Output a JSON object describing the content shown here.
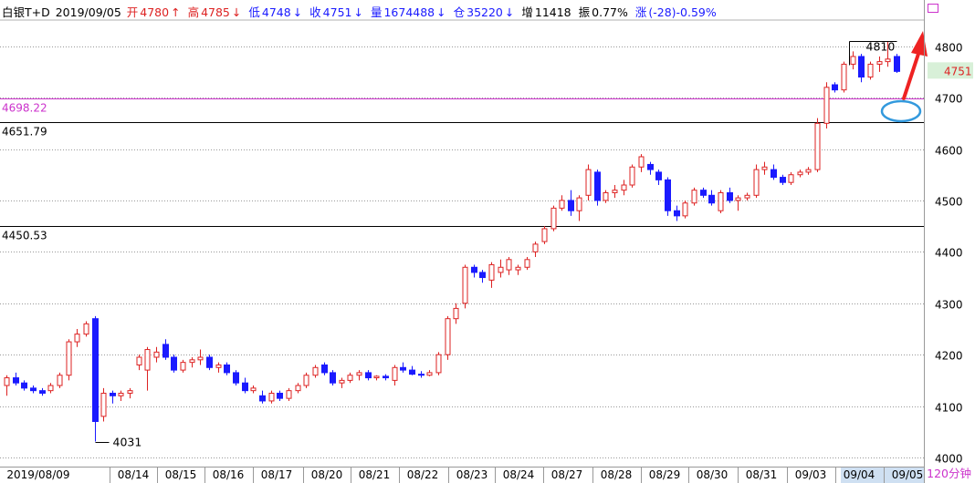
{
  "header": {
    "symbol": "白银T+D",
    "date": "2019/09/05",
    "open_label": "开",
    "open": "4780",
    "high_label": "高",
    "high": "4785",
    "low_label": "低",
    "low": "4748",
    "close_label": "收",
    "close": "4751",
    "volume_label": "量",
    "volume": "1674488",
    "oi_label": "仓",
    "oi": "35220",
    "oi_change_label": "增",
    "oi_change": "11418",
    "amplitude_label": "振",
    "amplitude": "0.77%",
    "change_label": "涨",
    "change": "(-28)-0.59%",
    "arrow_up": "↑",
    "arrow_down": "↓"
  },
  "period": "120分钟",
  "colors": {
    "up": "#dd2222",
    "down": "#1a1aff",
    "grid": "#999999",
    "hline_black": "#000000",
    "hline_magenta": "#cc33cc",
    "annotation_red": "#ee2222",
    "annotation_blue": "#3399dd",
    "current_price_bg": "#d8f0d8"
  },
  "chart_data": {
    "type": "candlestick",
    "ylim": [
      4000,
      4830
    ],
    "y_ticks": [
      4000,
      4100,
      4200,
      4300,
      4400,
      4500,
      4600,
      4700,
      4800
    ],
    "x_tick_labels": [
      "2019/08/09",
      "08/14",
      "08/15",
      "08/16",
      "08/17",
      "08/20",
      "08/21",
      "08/22",
      "08/23",
      "08/24",
      "08/27",
      "08/28",
      "08/29",
      "08/30",
      "08/31",
      "09/03",
      "09/04",
      "09/05"
    ],
    "horizontal_lines": [
      {
        "value": 4698.22,
        "label": "4698.22",
        "color": "magenta"
      },
      {
        "value": 4651.79,
        "label": "4651.79",
        "color": "black"
      },
      {
        "value": 4450.53,
        "label": "4450.53",
        "color": "black"
      }
    ],
    "annotations": [
      {
        "type": "high_marker",
        "value": 4810,
        "label": "4810"
      },
      {
        "type": "low_marker",
        "value": 4031,
        "label": "4031"
      }
    ],
    "current_price": "4751",
    "candles": [
      [
        4140,
        4160,
        4120,
        4155
      ],
      [
        4155,
        4165,
        4140,
        4145
      ],
      [
        4145,
        4150,
        4130,
        4135
      ],
      [
        4135,
        4140,
        4125,
        4130
      ],
      [
        4130,
        4135,
        4120,
        4125
      ],
      [
        4130,
        4145,
        4125,
        4140
      ],
      [
        4140,
        4165,
        4135,
        4160
      ],
      [
        4160,
        4230,
        4150,
        4225
      ],
      [
        4225,
        4250,
        4215,
        4240
      ],
      [
        4240,
        4265,
        4235,
        4260
      ],
      [
        4270,
        4275,
        4031,
        4070
      ],
      [
        4080,
        4135,
        4070,
        4125
      ],
      [
        4125,
        4130,
        4105,
        4120
      ],
      [
        4120,
        4130,
        4110,
        4125
      ],
      [
        4125,
        4135,
        4115,
        4130
      ],
      [
        4180,
        4200,
        4170,
        4195
      ],
      [
        4170,
        4215,
        4130,
        4210
      ],
      [
        4195,
        4215,
        4185,
        4205
      ],
      [
        4220,
        4230,
        4190,
        4195
      ],
      [
        4195,
        4200,
        4165,
        4170
      ],
      [
        4170,
        4190,
        4165,
        4185
      ],
      [
        4185,
        4195,
        4175,
        4190
      ],
      [
        4190,
        4210,
        4180,
        4195
      ],
      [
        4195,
        4200,
        4170,
        4175
      ],
      [
        4175,
        4185,
        4165,
        4180
      ],
      [
        4180,
        4185,
        4160,
        4165
      ],
      [
        4165,
        4170,
        4140,
        4145
      ],
      [
        4145,
        4155,
        4125,
        4130
      ],
      [
        4130,
        4140,
        4125,
        4135
      ],
      [
        4120,
        4130,
        4105,
        4110
      ],
      [
        4110,
        4130,
        4105,
        4125
      ],
      [
        4125,
        4130,
        4110,
        4115
      ],
      [
        4115,
        4135,
        4110,
        4130
      ],
      [
        4130,
        4145,
        4125,
        4140
      ],
      [
        4140,
        4165,
        4135,
        4160
      ],
      [
        4160,
        4180,
        4155,
        4175
      ],
      [
        4180,
        4185,
        4160,
        4165
      ],
      [
        4165,
        4170,
        4140,
        4145
      ],
      [
        4145,
        4155,
        4135,
        4150
      ],
      [
        4150,
        4165,
        4145,
        4160
      ],
      [
        4160,
        4170,
        4150,
        4165
      ],
      [
        4165,
        4170,
        4150,
        4155
      ],
      [
        4155,
        4160,
        4150,
        4158
      ],
      [
        4158,
        4162,
        4150,
        4155
      ],
      [
        4150,
        4180,
        4140,
        4175
      ],
      [
        4175,
        4185,
        4165,
        4170
      ],
      [
        4170,
        4178,
        4160,
        4162
      ],
      [
        4162,
        4168,
        4155,
        4160
      ],
      [
        4160,
        4170,
        4158,
        4165
      ],
      [
        4165,
        4205,
        4160,
        4200
      ],
      [
        4200,
        4275,
        4190,
        4270
      ],
      [
        4270,
        4300,
        4260,
        4290
      ],
      [
        4300,
        4375,
        4290,
        4370
      ],
      [
        4370,
        4375,
        4350,
        4360
      ],
      [
        4360,
        4365,
        4340,
        4350
      ],
      [
        4345,
        4380,
        4330,
        4375
      ],
      [
        4360,
        4385,
        4350,
        4370
      ],
      [
        4365,
        4390,
        4355,
        4385
      ],
      [
        4365,
        4375,
        4355,
        4370
      ],
      [
        4370,
        4390,
        4365,
        4385
      ],
      [
        4400,
        4420,
        4390,
        4415
      ],
      [
        4420,
        4450,
        4415,
        4445
      ],
      [
        4445,
        4490,
        4440,
        4485
      ],
      [
        4485,
        4510,
        4480,
        4500
      ],
      [
        4500,
        4520,
        4470,
        4480
      ],
      [
        4480,
        4510,
        4460,
        4505
      ],
      [
        4510,
        4570,
        4500,
        4560
      ],
      [
        4555,
        4560,
        4490,
        4500
      ],
      [
        4500,
        4520,
        4495,
        4515
      ],
      [
        4515,
        4530,
        4505,
        4520
      ],
      [
        4520,
        4540,
        4510,
        4530
      ],
      [
        4530,
        4570,
        4525,
        4565
      ],
      [
        4565,
        4590,
        4555,
        4585
      ],
      [
        4570,
        4575,
        4550,
        4560
      ],
      [
        4555,
        4560,
        4530,
        4540
      ],
      [
        4540,
        4545,
        4470,
        4480
      ],
      [
        4480,
        4490,
        4460,
        4470
      ],
      [
        4470,
        4500,
        4465,
        4495
      ],
      [
        4495,
        4525,
        4490,
        4520
      ],
      [
        4520,
        4525,
        4505,
        4510
      ],
      [
        4510,
        4520,
        4490,
        4495
      ],
      [
        4480,
        4520,
        4475,
        4515
      ],
      [
        4515,
        4525,
        4495,
        4500
      ],
      [
        4500,
        4510,
        4480,
        4505
      ],
      [
        4505,
        4515,
        4500,
        4510
      ],
      [
        4510,
        4570,
        4505,
        4560
      ],
      [
        4560,
        4575,
        4550,
        4565
      ],
      [
        4560,
        4570,
        4540,
        4545
      ],
      [
        4545,
        4550,
        4530,
        4535
      ],
      [
        4535,
        4555,
        4530,
        4550
      ],
      [
        4550,
        4560,
        4545,
        4555
      ],
      [
        4555,
        4565,
        4550,
        4560
      ],
      [
        4560,
        4660,
        4555,
        4650
      ],
      [
        4650,
        4730,
        4640,
        4720
      ],
      [
        4725,
        4730,
        4710,
        4715
      ],
      [
        4715,
        4770,
        4710,
        4765
      ],
      [
        4765,
        4790,
        4755,
        4780
      ],
      [
        4780,
        4785,
        4730,
        4740
      ],
      [
        4740,
        4770,
        4735,
        4765
      ],
      [
        4765,
        4780,
        4750,
        4770
      ],
      [
        4770,
        4810,
        4760,
        4775
      ],
      [
        4780,
        4785,
        4748,
        4751
      ]
    ]
  }
}
